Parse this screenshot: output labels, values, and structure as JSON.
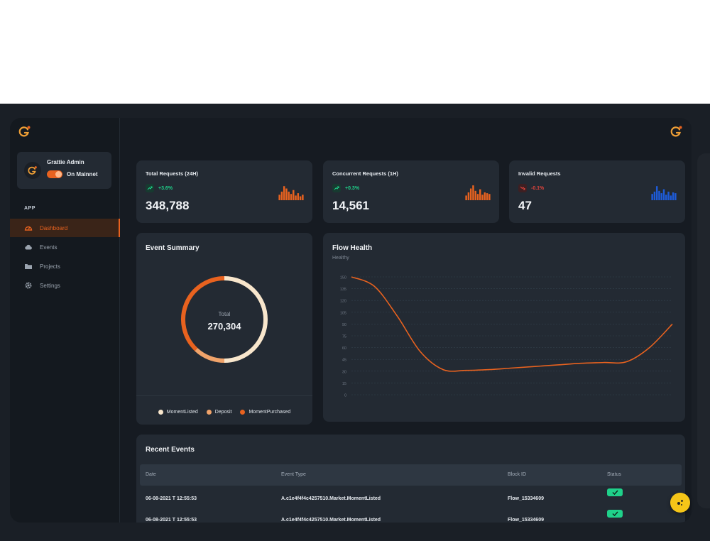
{
  "user": {
    "name": "Grattie Admin",
    "network": "On Mainnet"
  },
  "nav": {
    "section": "APP",
    "items": [
      {
        "label": "Dashboard",
        "icon": "dashboard-icon",
        "active": true
      },
      {
        "label": "Events",
        "icon": "cloud-icon",
        "active": false
      },
      {
        "label": "Projects",
        "icon": "folder-icon",
        "active": false
      },
      {
        "label": "Settings",
        "icon": "gear-icon",
        "active": false
      }
    ]
  },
  "stats": [
    {
      "title": "Total Requests (24H)",
      "delta": "+3.6%",
      "trend": "up",
      "value": "348,788",
      "color": "#e8621f",
      "bars": [
        0.35,
        0.55,
        0.9,
        0.75,
        0.55,
        0.4,
        0.65,
        0.3,
        0.45,
        0.25,
        0.35
      ]
    },
    {
      "title": "Concurrent Requests (1H)",
      "delta": "+0.3%",
      "trend": "up",
      "value": "14,561",
      "color": "#e8621f",
      "bars": [
        0.3,
        0.5,
        0.75,
        0.95,
        0.6,
        0.4,
        0.7,
        0.35,
        0.5,
        0.45,
        0.4
      ]
    },
    {
      "title": "Invalid Requests",
      "delta": "-0.1%",
      "trend": "down",
      "value": "47",
      "color": "#1e5bd8",
      "bars": [
        0.4,
        0.55,
        0.9,
        0.6,
        0.45,
        0.7,
        0.35,
        0.55,
        0.3,
        0.5,
        0.45
      ]
    }
  ],
  "event_summary": {
    "title": "Event Summary",
    "total_label": "Total",
    "total_value": "270,304",
    "legend": [
      {
        "label": "MomentListed",
        "color": "#f8e6cc"
      },
      {
        "label": "Deposit",
        "color": "#f0a36a"
      },
      {
        "label": "MomentPurchased",
        "color": "#e8621f"
      }
    ]
  },
  "flow_health": {
    "title": "Flow Health",
    "subtitle": "Healthy"
  },
  "chart_data": {
    "type": "line",
    "title": "Flow Health",
    "subtitle": "Healthy",
    "xlabel": "",
    "ylabel": "",
    "y_ticks": [
      0,
      15,
      30,
      45,
      60,
      75,
      90,
      105,
      120,
      135,
      150
    ],
    "ylim": [
      0,
      150
    ],
    "x": [
      0,
      1,
      2,
      3,
      4,
      5,
      6,
      7,
      8,
      9,
      10,
      11,
      12,
      13,
      14
    ],
    "series": [
      {
        "values": [
          150,
          138,
          100,
          55,
          32,
          31,
          32,
          34,
          36,
          38,
          40,
          41,
          42,
          60,
          90
        ],
        "color": "#e8621f"
      }
    ],
    "grid": true
  },
  "donut_data": {
    "type": "pie",
    "slices": [
      {
        "label": "MomentListed",
        "value": 50,
        "color": "#f8e6cc"
      },
      {
        "label": "Deposit",
        "value": 12,
        "color": "#f0a36a"
      },
      {
        "label": "MomentPurchased",
        "value": 38,
        "color": "#e8621f"
      }
    ]
  },
  "recent_events": {
    "title": "Recent Events",
    "columns": [
      "Date",
      "Event Type",
      "Block ID",
      "Status"
    ],
    "rows": [
      {
        "date": "06-08-2021 T 12:55:53",
        "event_type": "A.c1e4f4f4c4257510.Market.MomentListed",
        "block_id": "Flow_15334609",
        "status": "ok"
      },
      {
        "date": "06-08-2021 T 12:55:53",
        "event_type": "A.c1e4f4f4c4257510.Market.MomentListed",
        "block_id": "Flow_15334609",
        "status": "ok"
      }
    ]
  }
}
